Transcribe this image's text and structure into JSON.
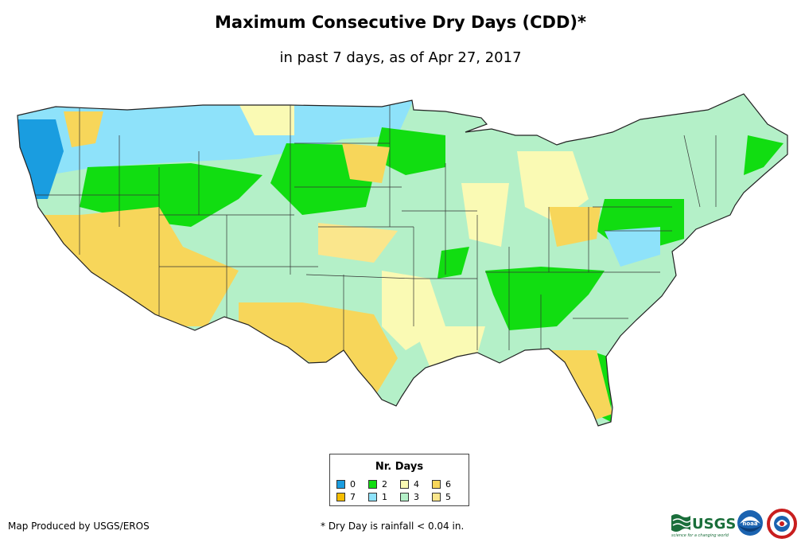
{
  "title": "Maximum Consecutive Dry Days (CDD)*",
  "subtitle": "in past 7 days, as of Apr 27, 2017",
  "legend": {
    "title": "Nr. Days",
    "items": [
      {
        "label": "0",
        "color": "#1a9de0"
      },
      {
        "label": "2",
        "color": "#11dd11"
      },
      {
        "label": "4",
        "color": "#fafab4"
      },
      {
        "label": "6",
        "color": "#f7d65a"
      },
      {
        "label": "7",
        "color": "#f5bd00"
      },
      {
        "label": "1",
        "color": "#8ee2fa"
      },
      {
        "label": "3",
        "color": "#b4f0c8"
      },
      {
        "label": "5",
        "color": "#fae68c"
      }
    ]
  },
  "credit": "Map Produced by USGS/EROS",
  "footnote": "* Dry Day is rainfall < 0.04 in.",
  "logos": {
    "usgs": "USGS",
    "usgs_tagline": "science for a changing world",
    "noaa": "noaa"
  }
}
